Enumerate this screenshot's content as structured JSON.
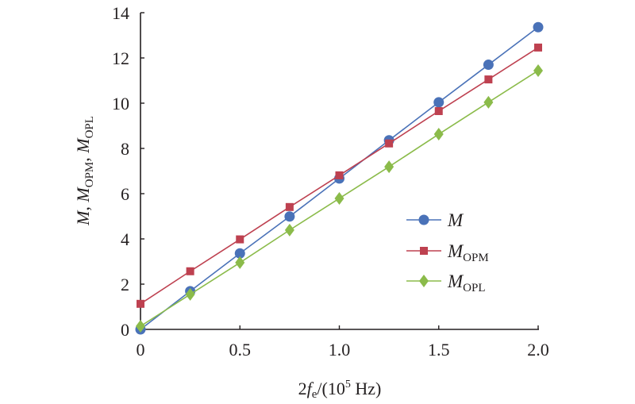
{
  "chart_data": {
    "type": "line",
    "title": "",
    "xlabel": "2f_e/(10^5 Hz)",
    "xlabel_parts": {
      "pre": "2",
      "f": "f",
      "e": "e",
      "mid": "/(10",
      "sup": "5",
      "post": " Hz)"
    },
    "ylabel": "M, M_OPM, M_OPL",
    "ylabel_parts": {
      "m1": "M",
      "comma1": ", ",
      "m2": "M",
      "s2": "OPM",
      "comma2": ", ",
      "m3": "M",
      "s3": "OPL"
    },
    "xlim": [
      0,
      2.0
    ],
    "ylim": [
      0,
      14
    ],
    "xticks": [
      0,
      0.5,
      1.0,
      1.5,
      2.0
    ],
    "xtick_labels": [
      "0",
      "0.5",
      "1.0",
      "1.5",
      "2.0"
    ],
    "yticks": [
      0,
      2,
      4,
      6,
      8,
      10,
      12,
      14
    ],
    "ytick_labels": [
      "0",
      "2",
      "4",
      "6",
      "8",
      "10",
      "12",
      "14"
    ],
    "grid": false,
    "legend_position": "center-right",
    "x": [
      0,
      0.25,
      0.5,
      0.75,
      1.0,
      1.25,
      1.5,
      1.75,
      2.0
    ],
    "series": [
      {
        "name": "M",
        "label_main": "M",
        "label_sub": "",
        "color": "#4a72b8",
        "marker": "circle",
        "values": [
          0.0,
          1.69,
          3.36,
          4.99,
          6.67,
          8.36,
          10.04,
          11.7,
          13.36
        ]
      },
      {
        "name": "M_OPM",
        "label_main": "M",
        "label_sub": "OPM",
        "color": "#be4150",
        "marker": "square",
        "values": [
          1.13,
          2.57,
          3.98,
          5.41,
          6.81,
          8.22,
          9.65,
          11.05,
          12.46
        ]
      },
      {
        "name": "M_OPL",
        "label_main": "M",
        "label_sub": "OPL",
        "color": "#8bbb4a",
        "marker": "diamond",
        "values": [
          0.14,
          1.55,
          2.95,
          4.39,
          5.79,
          7.19,
          8.63,
          10.04,
          11.44
        ]
      }
    ]
  }
}
